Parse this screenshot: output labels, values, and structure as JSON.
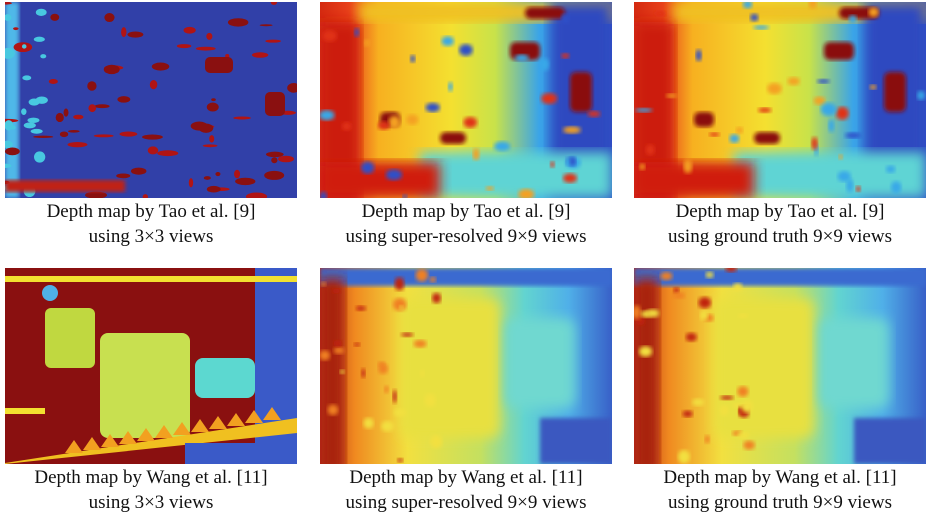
{
  "figure": {
    "panels": [
      {
        "line1": "Depth map by Tao et al. [9]",
        "line2": "using 3×3 views"
      },
      {
        "line1": "Depth map by Tao et al. [9]",
        "line2": "using super-resolved 9×9 views"
      },
      {
        "line1": "Depth map by Tao et al. [9]",
        "line2": "using ground truth 9×9 views"
      },
      {
        "line1": "Depth map by Wang et al. [11]",
        "line2": "using 3×3 views"
      },
      {
        "line1": "Depth map by Wang et al. [11]",
        "line2": "using super-resolved 9×9 views"
      },
      {
        "line1": "Depth map by Wang et al. [11]",
        "line2": "using ground truth 9×9 views"
      }
    ]
  }
}
